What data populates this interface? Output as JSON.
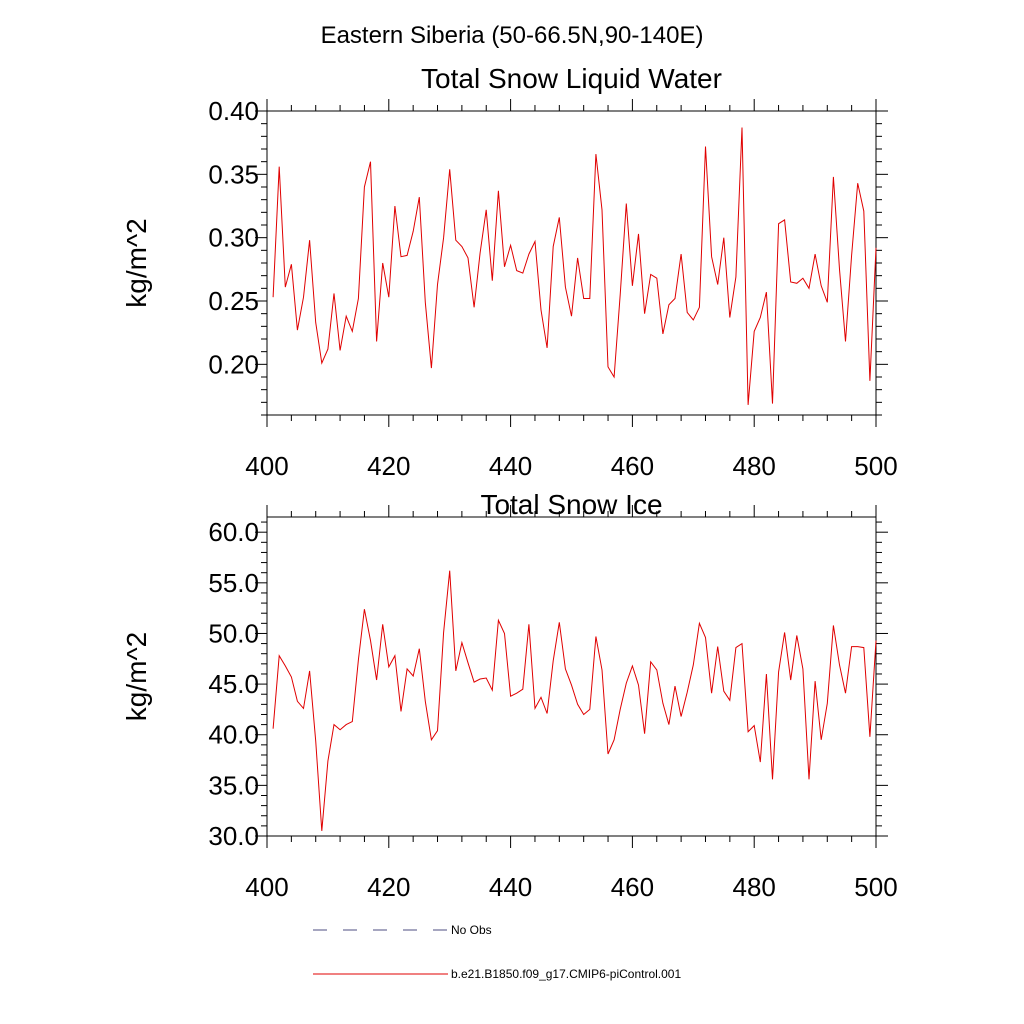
{
  "figure": {
    "suptitle": "Eastern Siberia (50-66.5N,90-140E)"
  },
  "legend": {
    "placement": "bottom-center",
    "items": [
      {
        "label": "No Obs",
        "color": "#4d4d80",
        "style": "dashed"
      },
      {
        "label": "b.e21.B1850.f09_g17.CMIP6-piControl.001",
        "color": "#e00000",
        "style": "solid"
      }
    ]
  },
  "chart_data": [
    {
      "type": "line",
      "title": "Total Snow Liquid Water",
      "xlabel": "",
      "ylabel": "kg/m^2",
      "xlim": [
        400,
        500
      ],
      "ylim": [
        0.16,
        0.4
      ],
      "xticks": [
        "400",
        "420",
        "440",
        "460",
        "480",
        "500"
      ],
      "xtick_values": [
        400,
        420,
        440,
        460,
        480,
        500
      ],
      "yticks": [
        "0.20",
        "0.25",
        "0.30",
        "0.35",
        "0.40"
      ],
      "ytick_values": [
        0.2,
        0.25,
        0.3,
        0.35,
        0.4
      ],
      "grid": false,
      "series": [
        {
          "name": "b.e21.B1850.f09_g17.CMIP6-piControl.001",
          "color": "#e00000",
          "x_start": 401,
          "x_step": 1,
          "values": [
            0.253,
            0.356,
            0.261,
            0.279,
            0.227,
            0.253,
            0.298,
            0.233,
            0.201,
            0.212,
            0.256,
            0.211,
            0.238,
            0.226,
            0.252,
            0.34,
            0.36,
            0.218,
            0.28,
            0.253,
            0.325,
            0.285,
            0.286,
            0.305,
            0.332,
            0.249,
            0.197,
            0.263,
            0.3,
            0.354,
            0.298,
            0.293,
            0.284,
            0.245,
            0.288,
            0.322,
            0.266,
            0.337,
            0.277,
            0.294,
            0.274,
            0.272,
            0.287,
            0.297,
            0.243,
            0.213,
            0.293,
            0.316,
            0.261,
            0.238,
            0.284,
            0.252,
            0.252,
            0.366,
            0.322,
            0.198,
            0.19,
            0.255,
            0.327,
            0.262,
            0.303,
            0.24,
            0.271,
            0.268,
            0.224,
            0.247,
            0.252,
            0.287,
            0.241,
            0.235,
            0.245,
            0.372,
            0.285,
            0.263,
            0.3,
            0.237,
            0.269,
            0.387,
            0.168,
            0.226,
            0.237,
            0.257,
            0.169,
            0.311,
            0.314,
            0.265,
            0.264,
            0.268,
            0.26,
            0.287,
            0.262,
            0.249,
            0.348,
            0.275,
            0.218,
            0.286,
            0.343,
            0.321,
            0.187,
            0.292
          ]
        }
      ]
    },
    {
      "type": "line",
      "title": "Total Snow Ice",
      "xlabel": "",
      "ylabel": "kg/m^2",
      "xlim": [
        400,
        500
      ],
      "ylim": [
        30.0,
        61.5
      ],
      "xticks": [
        "400",
        "420",
        "440",
        "460",
        "480",
        "500"
      ],
      "xtick_values": [
        400,
        420,
        440,
        460,
        480,
        500
      ],
      "yticks": [
        "30.0",
        "35.0",
        "40.0",
        "45.0",
        "50.0",
        "55.0",
        "60.0"
      ],
      "ytick_values": [
        30.0,
        35.0,
        40.0,
        45.0,
        50.0,
        55.0,
        60.0
      ],
      "grid": false,
      "series": [
        {
          "name": "b.e21.B1850.f09_g17.CMIP6-piControl.001",
          "color": "#e00000",
          "x_start": 401,
          "x_step": 1,
          "values": [
            40.6,
            47.8,
            46.8,
            45.7,
            43.3,
            42.6,
            46.3,
            39.4,
            30.5,
            37.4,
            41.0,
            40.5,
            41.0,
            41.3,
            47.4,
            52.4,
            49.3,
            45.4,
            50.9,
            46.7,
            47.8,
            42.3,
            46.5,
            45.8,
            48.5,
            43.3,
            39.5,
            40.4,
            50.1,
            56.2,
            46.3,
            49.1,
            47.1,
            45.2,
            45.5,
            45.6,
            44.4,
            51.3,
            50.0,
            43.8,
            44.1,
            44.5,
            50.9,
            42.6,
            43.7,
            42.1,
            47.3,
            51.1,
            46.5,
            44.9,
            43.0,
            42.0,
            42.5,
            49.7,
            46.4,
            38.1,
            39.5,
            42.5,
            45.1,
            46.8,
            44.9,
            40.1,
            47.2,
            46.4,
            43.1,
            41.0,
            44.8,
            41.8,
            44.2,
            46.9,
            51.0,
            49.6,
            44.1,
            48.7,
            44.3,
            43.4,
            48.6,
            49.0,
            40.3,
            40.9,
            37.3,
            46.0,
            35.6,
            46.2,
            50.1,
            45.4,
            49.8,
            46.5,
            35.6,
            45.3,
            39.5,
            43.1,
            50.8,
            46.9,
            44.1,
            48.7,
            48.7,
            48.6,
            39.8,
            49.3
          ]
        }
      ]
    }
  ]
}
